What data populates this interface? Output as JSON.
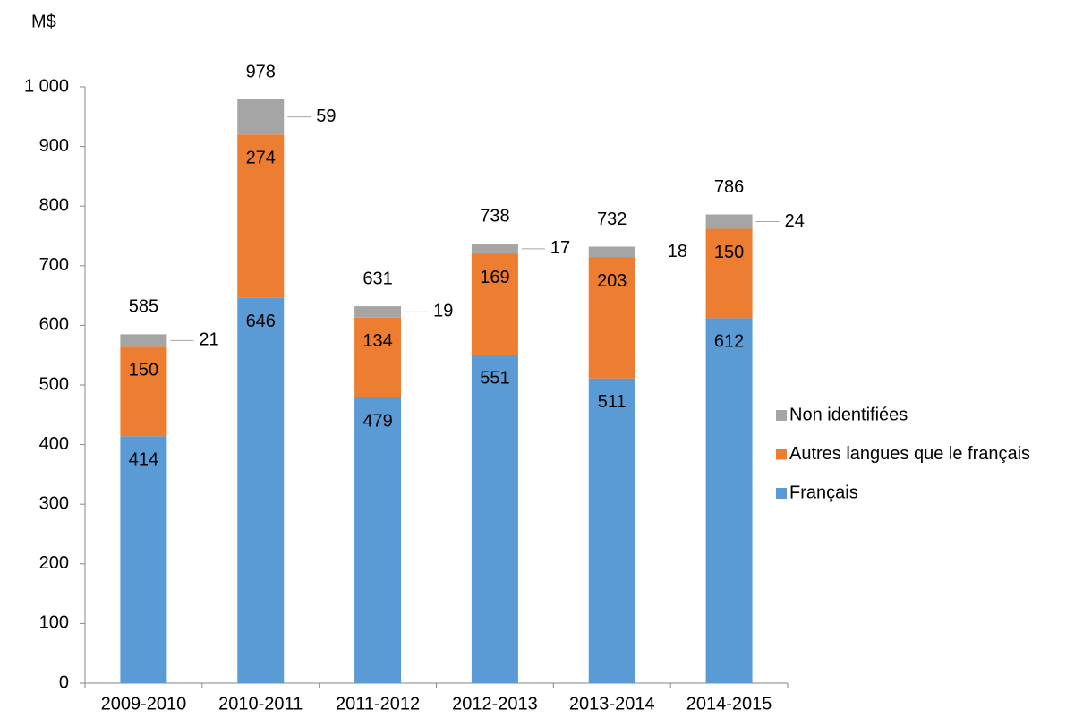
{
  "chart_data": {
    "type": "stacked_bar",
    "y_label": "M$",
    "categories": [
      "2009-2010",
      "2010-2011",
      "2011-2012",
      "2012-2013",
      "2013-2014",
      "2014-2015"
    ],
    "series": [
      {
        "name": "Français",
        "color": "#5b9bd5",
        "values": [
          414,
          646,
          479,
          551,
          511,
          612
        ]
      },
      {
        "name": "Autres langues que le français",
        "color": "#ed7d31",
        "values": [
          150,
          274,
          134,
          169,
          203,
          150
        ]
      },
      {
        "name": "Non identifiées",
        "color": "#a5a5a5",
        "values": [
          21,
          59,
          19,
          17,
          18,
          24
        ]
      }
    ],
    "totals": [
      585,
      978,
      631,
      738,
      732,
      786
    ],
    "ylim": [
      0,
      1000
    ],
    "yticks": [
      0,
      100,
      200,
      300,
      400,
      500,
      600,
      700,
      800,
      900,
      {
        "value": 1000,
        "label": "1 000"
      }
    ],
    "grid": false,
    "legend": "right"
  }
}
